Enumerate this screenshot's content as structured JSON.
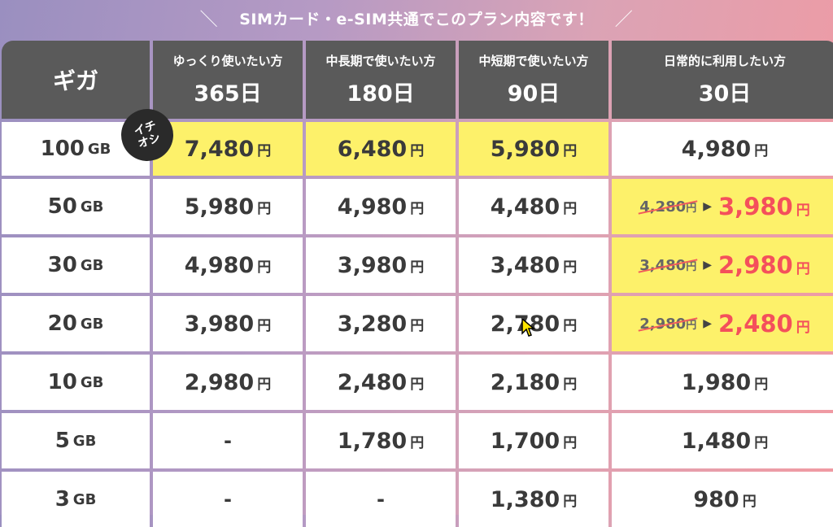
{
  "banner": {
    "title": "SIMカード・e-SIM共通でこのプラン内容です！",
    "slash_left": "＼",
    "slash_right": "／"
  },
  "header": {
    "giga": "ギガ",
    "plans": [
      {
        "sub": "ゆっくり使いたい方",
        "days": "365日"
      },
      {
        "sub": "中長期で使いたい方",
        "days": "180日"
      },
      {
        "sub": "中短期で使いたい方",
        "days": "90日"
      },
      {
        "sub": "日常的に利用したい方",
        "days": "30日"
      }
    ]
  },
  "badge": {
    "line1": "イチ",
    "line2": "オシ"
  },
  "unit_gb": "GB",
  "yen": "円",
  "rows": [
    {
      "gb": "100",
      "prices": [
        "7,480",
        "6,480",
        "5,980",
        "4,980"
      ]
    },
    {
      "gb": "50",
      "prices": [
        "5,980",
        "4,980",
        "4,480"
      ],
      "old": "4,280",
      "new": "3,980"
    },
    {
      "gb": "30",
      "prices": [
        "4,980",
        "3,980",
        "3,480"
      ],
      "old": "3,480",
      "new": "2,980"
    },
    {
      "gb": "20",
      "prices": [
        "3,980",
        "3,280",
        "2,780"
      ],
      "old": "2,980",
      "new": "2,480"
    },
    {
      "gb": "10",
      "prices": [
        "2,980",
        "2,480",
        "2,180",
        "1,980"
      ]
    },
    {
      "gb": "5",
      "prices": [
        "-",
        "1,780",
        "1,700",
        "1,480"
      ]
    },
    {
      "gb": "3",
      "prices": [
        "-",
        "-",
        "1,380",
        "980"
      ]
    }
  ],
  "colors": {
    "highlight": "#fdf16a",
    "sale": "#f4505b",
    "header": "#5a5a5a"
  }
}
